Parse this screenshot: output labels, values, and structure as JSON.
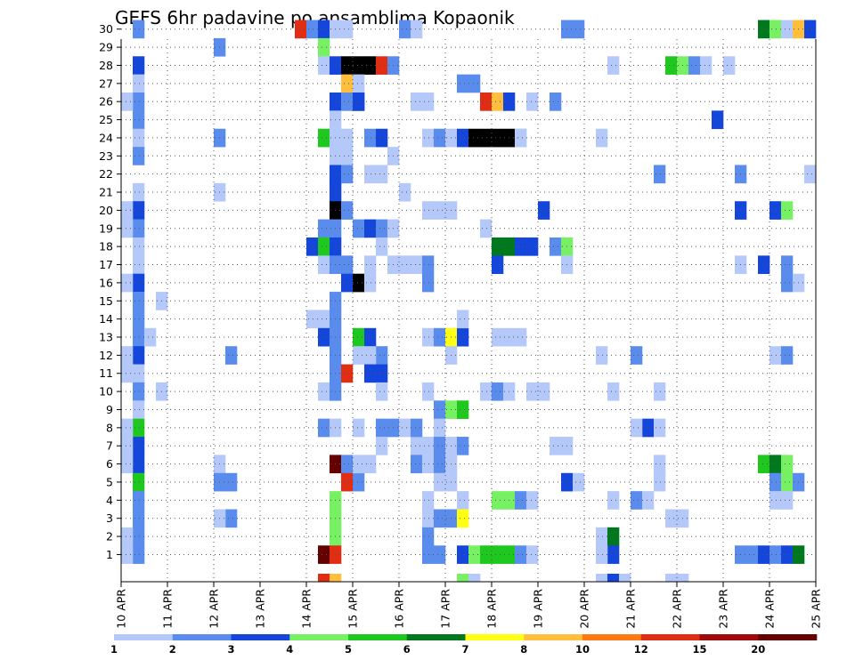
{
  "chart_data": {
    "type": "heatmap",
    "title": "GEFS 6hr padavine po ansamblima Kopaonik",
    "xlabel": "",
    "ylabel": "",
    "x_tick_labels": [
      "10 APR",
      "11 APR",
      "12 APR",
      "13 APR",
      "14 APR",
      "15 APR",
      "16 APR",
      "17 APR",
      "18 APR",
      "19 APR",
      "20 APR",
      "21 APR",
      "22 APR",
      "23 APR",
      "24 APR",
      "25 APR"
    ],
    "y_tick_labels": [
      "1",
      "2",
      "3",
      "4",
      "5",
      "6",
      "7",
      "8",
      "9",
      "10",
      "11",
      "12",
      "13",
      "14",
      "15",
      "16",
      "17",
      "18",
      "19",
      "20",
      "21",
      "22",
      "23",
      "24",
      "25",
      "26",
      "27",
      "28",
      "29",
      "30"
    ],
    "x_unit_per_day": 4,
    "x_range": [
      0,
      60
    ],
    "members": 30,
    "grid": "dotted",
    "legend": {
      "position": "bottom",
      "labels": [
        "1",
        "2",
        "3",
        "4",
        "5",
        "6",
        "7",
        "8",
        "10",
        "12",
        "15",
        "20"
      ],
      "colors": [
        "#b4c8fa",
        "#5a8ced",
        "#1446dc",
        "#78f064",
        "#1ec81e",
        "#00781e",
        "#ffff14",
        "#ffbe3c",
        "#ff7814",
        "#e12d14",
        "#a00a0a",
        "#640000"
      ]
    },
    "cells": [
      [
        1,
        30,
        2
      ],
      [
        1,
        28,
        3
      ],
      [
        1,
        27,
        1
      ],
      [
        1,
        26,
        2
      ],
      [
        1,
        25,
        2
      ],
      [
        1,
        24,
        1
      ],
      [
        1,
        23,
        2
      ],
      [
        1,
        21,
        1
      ],
      [
        1,
        20,
        3
      ],
      [
        1,
        19,
        2
      ],
      [
        1,
        18,
        1
      ],
      [
        1,
        17,
        1
      ],
      [
        1,
        16,
        3
      ],
      [
        1,
        15,
        2
      ],
      [
        1,
        14,
        2
      ],
      [
        1,
        13,
        2
      ],
      [
        1,
        12,
        3
      ],
      [
        1,
        11,
        1
      ],
      [
        1,
        10,
        2
      ],
      [
        1,
        9,
        1
      ],
      [
        1,
        8,
        5
      ],
      [
        1,
        7,
        3
      ],
      [
        1,
        6,
        3
      ],
      [
        1,
        5,
        5
      ],
      [
        1,
        4,
        2
      ],
      [
        1,
        3,
        2
      ],
      [
        1,
        2,
        2
      ],
      [
        1,
        1,
        2
      ],
      [
        0,
        26,
        1
      ],
      [
        0,
        20,
        1
      ],
      [
        0,
        19,
        1
      ],
      [
        0,
        16,
        1
      ],
      [
        0,
        12,
        1
      ],
      [
        0,
        11,
        1
      ],
      [
        0,
        8,
        1
      ],
      [
        0,
        7,
        1
      ],
      [
        0,
        6,
        1
      ],
      [
        0,
        2,
        1
      ],
      [
        0,
        1,
        1
      ],
      [
        3,
        15,
        1
      ],
      [
        2,
        13,
        1
      ],
      [
        3,
        10,
        1
      ],
      [
        8,
        29,
        2
      ],
      [
        8,
        24,
        2
      ],
      [
        8,
        21,
        1
      ],
      [
        8,
        6,
        1
      ],
      [
        8,
        5,
        2
      ],
      [
        9,
        5,
        2
      ],
      [
        9,
        3,
        2
      ],
      [
        8,
        3,
        1
      ],
      [
        9,
        12,
        2
      ],
      [
        15,
        30,
        10
      ],
      [
        16,
        30,
        2
      ],
      [
        17,
        30,
        3
      ],
      [
        18,
        30,
        1
      ],
      [
        19,
        30,
        1
      ],
      [
        17,
        29,
        4
      ],
      [
        17,
        28,
        1
      ],
      [
        18,
        28,
        3
      ],
      [
        19,
        28,
        15
      ],
      [
        20,
        28,
        20
      ],
      [
        21,
        28,
        15
      ],
      [
        22,
        28,
        10
      ],
      [
        23,
        28,
        2
      ],
      [
        19,
        27,
        8
      ],
      [
        20,
        27,
        1
      ],
      [
        18,
        26,
        3
      ],
      [
        19,
        26,
        2
      ],
      [
        20,
        26,
        3
      ],
      [
        18,
        25,
        1
      ],
      [
        17,
        24,
        5
      ],
      [
        18,
        24,
        1
      ],
      [
        19,
        24,
        1
      ],
      [
        18,
        23,
        1
      ],
      [
        19,
        23,
        1
      ],
      [
        18,
        22,
        3
      ],
      [
        19,
        22,
        2
      ],
      [
        18,
        21,
        3
      ],
      [
        18,
        20,
        15
      ],
      [
        19,
        20,
        2
      ],
      [
        18,
        19,
        2
      ],
      [
        17,
        19,
        2
      ],
      [
        16,
        18,
        3
      ],
      [
        17,
        18,
        5
      ],
      [
        18,
        18,
        3
      ],
      [
        17,
        17,
        1
      ],
      [
        18,
        17,
        2
      ],
      [
        19,
        17,
        2
      ],
      [
        19,
        16,
        3
      ],
      [
        20,
        16,
        15
      ],
      [
        18,
        15,
        2
      ],
      [
        16,
        14,
        1
      ],
      [
        17,
        14,
        1
      ],
      [
        18,
        14,
        2
      ],
      [
        17,
        13,
        3
      ],
      [
        18,
        13,
        2
      ],
      [
        18,
        12,
        2
      ],
      [
        18,
        11,
        2
      ],
      [
        19,
        11,
        10
      ],
      [
        17,
        10,
        1
      ],
      [
        18,
        10,
        2
      ],
      [
        17,
        8,
        2
      ],
      [
        18,
        8,
        1
      ],
      [
        18,
        6,
        12
      ],
      [
        19,
        6,
        2
      ],
      [
        19,
        5,
        10
      ],
      [
        20,
        5,
        2
      ],
      [
        18,
        4,
        4
      ],
      [
        18,
        3,
        4
      ],
      [
        18,
        2,
        4
      ],
      [
        17,
        1,
        12
      ],
      [
        18,
        1,
        10
      ],
      [
        17,
        0,
        10
      ],
      [
        18,
        0,
        8
      ],
      [
        20,
        26,
        3
      ],
      [
        20,
        19,
        2
      ],
      [
        20,
        13,
        5
      ],
      [
        21,
        13,
        3
      ],
      [
        20,
        12,
        1
      ],
      [
        20,
        8,
        1
      ],
      [
        20,
        6,
        1
      ],
      [
        21,
        6,
        1
      ],
      [
        21,
        24,
        2
      ],
      [
        22,
        24,
        3
      ],
      [
        21,
        22,
        1
      ],
      [
        22,
        22,
        1
      ],
      [
        21,
        19,
        3
      ],
      [
        22,
        19,
        2
      ],
      [
        23,
        19,
        1
      ],
      [
        22,
        18,
        1
      ],
      [
        21,
        17,
        1
      ],
      [
        21,
        16,
        1
      ],
      [
        22,
        12,
        2
      ],
      [
        21,
        12,
        1
      ],
      [
        21,
        11,
        3
      ],
      [
        22,
        11,
        3
      ],
      [
        22,
        10,
        1
      ],
      [
        22,
        8,
        2
      ],
      [
        23,
        8,
        2
      ],
      [
        22,
        7,
        1
      ],
      [
        23,
        23,
        1
      ],
      [
        24,
        21,
        1
      ],
      [
        24,
        30,
        2
      ],
      [
        25,
        30,
        1
      ],
      [
        25,
        17,
        1
      ],
      [
        24,
        17,
        1
      ],
      [
        23,
        17,
        1
      ],
      [
        26,
        17,
        2
      ],
      [
        26,
        16,
        2
      ],
      [
        25,
        7,
        1
      ],
      [
        25,
        6,
        2
      ],
      [
        24,
        8,
        1
      ],
      [
        25,
        8,
        2
      ],
      [
        25,
        26,
        1
      ],
      [
        26,
        26,
        1
      ],
      [
        26,
        24,
        1
      ],
      [
        27,
        24,
        2
      ],
      [
        28,
        24,
        1
      ],
      [
        29,
        24,
        3
      ],
      [
        26,
        20,
        1
      ],
      [
        27,
        20,
        1
      ],
      [
        28,
        20,
        1
      ],
      [
        26,
        13,
        1
      ],
      [
        27,
        13,
        2
      ],
      [
        28,
        13,
        7
      ],
      [
        29,
        13,
        3
      ],
      [
        26,
        10,
        1
      ],
      [
        27,
        9,
        2
      ],
      [
        28,
        9,
        4
      ],
      [
        29,
        9,
        5
      ],
      [
        27,
        8,
        1
      ],
      [
        26,
        7,
        1
      ],
      [
        27,
        7,
        2
      ],
      [
        28,
        7,
        1
      ],
      [
        29,
        7,
        2
      ],
      [
        26,
        6,
        1
      ],
      [
        27,
        6,
        2
      ],
      [
        28,
        6,
        1
      ],
      [
        27,
        5,
        1
      ],
      [
        28,
        5,
        1
      ],
      [
        29,
        4,
        1
      ],
      [
        26,
        4,
        1
      ],
      [
        26,
        3,
        1
      ],
      [
        26,
        2,
        2
      ],
      [
        26,
        1,
        2
      ],
      [
        27,
        1,
        2
      ],
      [
        27,
        3,
        2
      ],
      [
        28,
        3,
        2
      ],
      [
        29,
        3,
        7
      ],
      [
        29,
        1,
        3
      ],
      [
        30,
        1,
        4
      ],
      [
        31,
        1,
        5
      ],
      [
        29,
        0,
        4
      ],
      [
        30,
        0,
        1
      ],
      [
        28,
        12,
        1
      ],
      [
        29,
        14,
        1
      ],
      [
        29,
        27,
        2
      ],
      [
        30,
        27,
        2
      ],
      [
        31,
        26,
        10
      ],
      [
        32,
        26,
        8
      ],
      [
        33,
        26,
        3
      ],
      [
        30,
        24,
        15
      ],
      [
        31,
        24,
        15
      ],
      [
        32,
        24,
        15
      ],
      [
        33,
        24,
        15
      ],
      [
        34,
        24,
        1
      ],
      [
        31,
        19,
        1
      ],
      [
        32,
        18,
        6
      ],
      [
        33,
        18,
        6
      ],
      [
        34,
        18,
        3
      ],
      [
        35,
        18,
        3
      ],
      [
        32,
        17,
        3
      ],
      [
        32,
        13,
        1
      ],
      [
        33,
        13,
        1
      ],
      [
        34,
        13,
        1
      ],
      [
        31,
        10,
        1
      ],
      [
        32,
        10,
        2
      ],
      [
        33,
        10,
        1
      ],
      [
        32,
        1,
        5
      ],
      [
        33,
        1,
        5
      ],
      [
        34,
        1,
        2
      ],
      [
        35,
        1,
        1
      ],
      [
        32,
        4,
        4
      ],
      [
        33,
        4,
        4
      ],
      [
        34,
        4,
        2
      ],
      [
        35,
        4,
        1
      ],
      [
        35,
        26,
        1
      ],
      [
        34,
        24,
        1
      ],
      [
        36,
        20,
        3
      ],
      [
        37,
        26,
        2
      ],
      [
        35,
        10,
        1
      ],
      [
        36,
        10,
        1
      ],
      [
        37,
        18,
        2
      ],
      [
        38,
        18,
        4
      ],
      [
        38,
        17,
        1
      ],
      [
        37,
        7,
        1
      ],
      [
        38,
        7,
        1
      ],
      [
        38,
        5,
        3
      ],
      [
        39,
        5,
        1
      ],
      [
        38,
        30,
        2
      ],
      [
        39,
        30,
        2
      ],
      [
        41,
        24,
        1
      ],
      [
        41,
        12,
        1
      ],
      [
        41,
        2,
        1
      ],
      [
        42,
        2,
        6
      ],
      [
        42,
        1,
        3
      ],
      [
        41,
        1,
        1
      ],
      [
        41,
        0,
        1
      ],
      [
        42,
        0,
        3
      ],
      [
        42,
        4,
        1
      ],
      [
        42,
        10,
        1
      ],
      [
        42,
        28,
        1
      ],
      [
        43,
        0,
        1
      ],
      [
        44,
        12,
        2
      ],
      [
        44,
        4,
        2
      ],
      [
        45,
        4,
        1
      ],
      [
        45,
        8,
        3
      ],
      [
        44,
        8,
        1
      ],
      [
        46,
        8,
        1
      ],
      [
        46,
        10,
        1
      ],
      [
        46,
        6,
        1
      ],
      [
        46,
        5,
        1
      ],
      [
        47,
        3,
        1
      ],
      [
        48,
        3,
        1
      ],
      [
        46,
        22,
        2
      ],
      [
        47,
        0,
        1
      ],
      [
        48,
        0,
        1
      ],
      [
        47,
        28,
        5
      ],
      [
        48,
        28,
        4
      ],
      [
        49,
        28,
        2
      ],
      [
        50,
        28,
        1
      ],
      [
        52,
        28,
        1
      ],
      [
        51,
        25,
        3
      ],
      [
        53,
        22,
        2
      ],
      [
        55,
        30,
        6
      ],
      [
        56,
        30,
        4
      ],
      [
        57,
        30,
        1
      ],
      [
        58,
        30,
        8
      ],
      [
        59,
        30,
        3
      ],
      [
        53,
        20,
        3
      ],
      [
        56,
        20,
        3
      ],
      [
        57,
        20,
        4
      ],
      [
        53,
        17,
        1
      ],
      [
        55,
        17,
        3
      ],
      [
        57,
        17,
        2
      ],
      [
        57,
        16,
        2
      ],
      [
        58,
        16,
        1
      ],
      [
        56,
        12,
        1
      ],
      [
        57,
        12,
        2
      ],
      [
        55,
        6,
        5
      ],
      [
        56,
        6,
        6
      ],
      [
        57,
        6,
        4
      ],
      [
        56,
        5,
        2
      ],
      [
        57,
        5,
        4
      ],
      [
        58,
        5,
        2
      ],
      [
        56,
        4,
        1
      ],
      [
        57,
        4,
        1
      ],
      [
        53,
        1,
        2
      ],
      [
        54,
        1,
        2
      ],
      [
        55,
        1,
        3
      ],
      [
        56,
        1,
        2
      ],
      [
        57,
        1,
        3
      ],
      [
        58,
        1,
        6
      ],
      [
        59,
        22,
        1
      ]
    ]
  }
}
